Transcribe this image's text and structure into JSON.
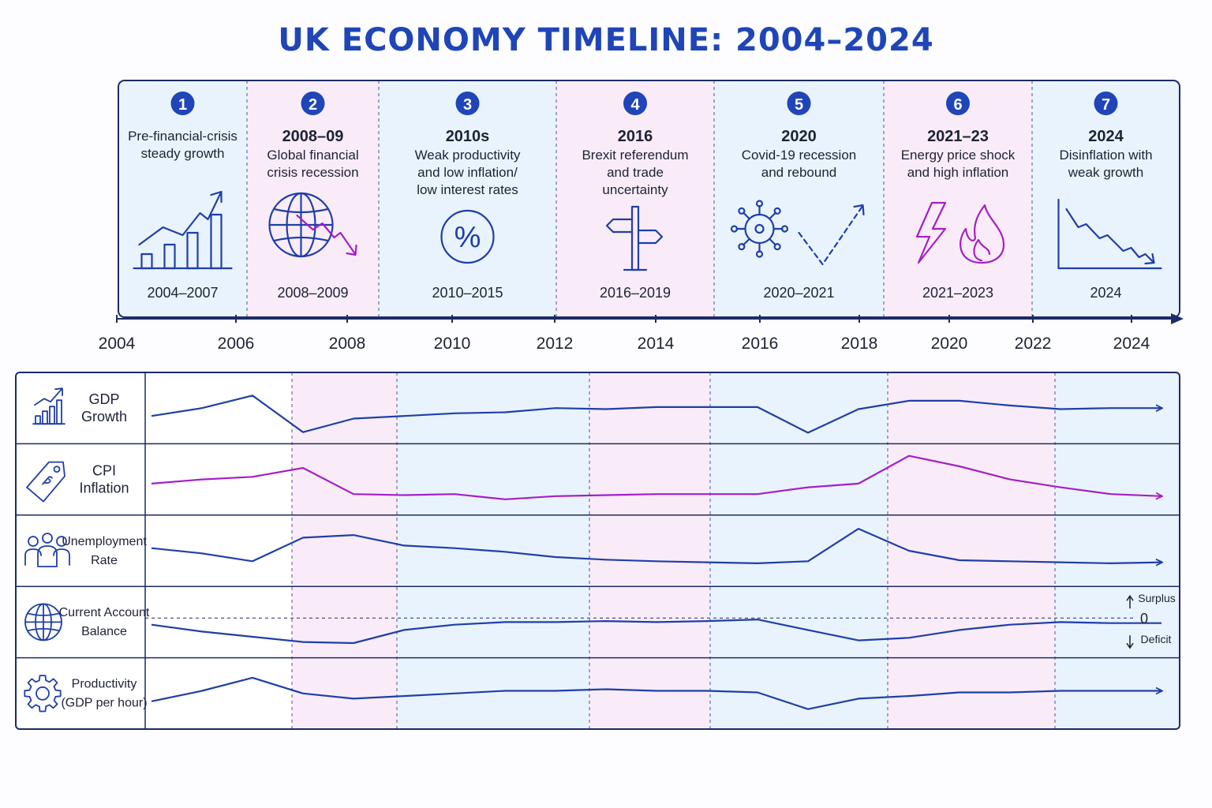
{
  "title": "UK ECONOMY TIMELINE: 2004–2024",
  "colors": {
    "blue": "#1f3fa8",
    "purple": "#a51fc4",
    "band_blue": "#e9f3fd",
    "band_pink": "#f9ecf8"
  },
  "phases": [
    {
      "num": "1",
      "year": "",
      "desc": [
        "Pre-financial-crisis",
        "steady growth"
      ],
      "range": "2004–2007",
      "icon": "growth-chart-icon",
      "tint": "blue"
    },
    {
      "num": "2",
      "year": "2008–09",
      "desc": [
        "Global financial",
        "crisis recession"
      ],
      "range": "2008–2009",
      "icon": "globe-decline-icon",
      "tint": "pink"
    },
    {
      "num": "3",
      "year": "2010s",
      "desc": [
        "Weak productivity",
        "and low inflation/",
        "low interest rates"
      ],
      "range": "2010–2015",
      "icon": "percent-icon",
      "tint": "blue"
    },
    {
      "num": "4",
      "year": "2016",
      "desc": [
        "Brexit referendum",
        "and trade",
        "uncertainty"
      ],
      "range": "2016–2019",
      "icon": "signpost-icon",
      "tint": "pink"
    },
    {
      "num": "5",
      "year": "2020",
      "desc": [
        "Covid-19 recession",
        "and rebound"
      ],
      "range": "2020–2021",
      "icon": "virus-rebound-icon",
      "tint": "blue"
    },
    {
      "num": "6",
      "year": "2021–23",
      "desc": [
        "Energy price shock",
        "and high inflation"
      ],
      "range": "2021–2023",
      "icon": "lightning-flame-icon",
      "tint": "pink"
    },
    {
      "num": "7",
      "year": "2024",
      "desc": [
        "Disinflation with",
        "weak growth"
      ],
      "range": "2024",
      "icon": "declining-chart-icon",
      "tint": "blue"
    }
  ],
  "axis_ticks": [
    "2004",
    "2006",
    "2008",
    "2010",
    "2012",
    "2014",
    "2016",
    "2018",
    "2020",
    "2022",
    "2024"
  ],
  "indicators": [
    {
      "id": "gdp",
      "label": [
        "GDP",
        "Growth"
      ],
      "icon": "bar-growth-icon",
      "color": "blue",
      "values": [
        0.35,
        0.5,
        0.74,
        0.04,
        0.3,
        0.35,
        0.4,
        0.42,
        0.5,
        0.48,
        0.52,
        0.52,
        0.52,
        0.03,
        0.48,
        0.64,
        0.64,
        0.55,
        0.48,
        0.5,
        0.5
      ]
    },
    {
      "id": "cpi",
      "label": [
        "CPI",
        "Inflation"
      ],
      "icon": "price-tag-icon",
      "color": "purple",
      "values": [
        0.42,
        0.5,
        0.55,
        0.72,
        0.22,
        0.2,
        0.22,
        0.12,
        0.18,
        0.2,
        0.22,
        0.22,
        0.22,
        0.35,
        0.42,
        0.95,
        0.75,
        0.5,
        0.35,
        0.22,
        0.18
      ]
    },
    {
      "id": "unemployment",
      "label": [
        "Unemployment",
        "Rate"
      ],
      "icon": "people-icon",
      "color": "blue",
      "values": [
        0.55,
        0.45,
        0.3,
        0.75,
        0.8,
        0.6,
        0.55,
        0.48,
        0.38,
        0.33,
        0.3,
        0.28,
        0.26,
        0.3,
        0.92,
        0.5,
        0.32,
        0.3,
        0.28,
        0.26,
        0.28
      ]
    },
    {
      "id": "current-account",
      "label": [
        "Current Account",
        "Balance"
      ],
      "icon": "globe-icon",
      "color": "blue",
      "values": [
        0.45,
        0.32,
        0.22,
        0.12,
        0.1,
        0.35,
        0.45,
        0.5,
        0.5,
        0.52,
        0.5,
        0.52,
        0.55,
        0.35,
        0.15,
        0.2,
        0.35,
        0.45,
        0.5,
        0.48,
        0.48
      ],
      "markers": {
        "up": "Surplus",
        "zero": "0",
        "down": "Deficit"
      }
    },
    {
      "id": "productivity",
      "label": [
        "Productivity",
        "(GDP per hour)"
      ],
      "icon": "gear-icon",
      "color": "blue",
      "values": [
        0.35,
        0.55,
        0.8,
        0.5,
        0.4,
        0.45,
        0.5,
        0.55,
        0.55,
        0.58,
        0.55,
        0.55,
        0.52,
        0.2,
        0.4,
        0.45,
        0.52,
        0.52,
        0.55,
        0.55,
        0.55
      ]
    }
  ]
}
